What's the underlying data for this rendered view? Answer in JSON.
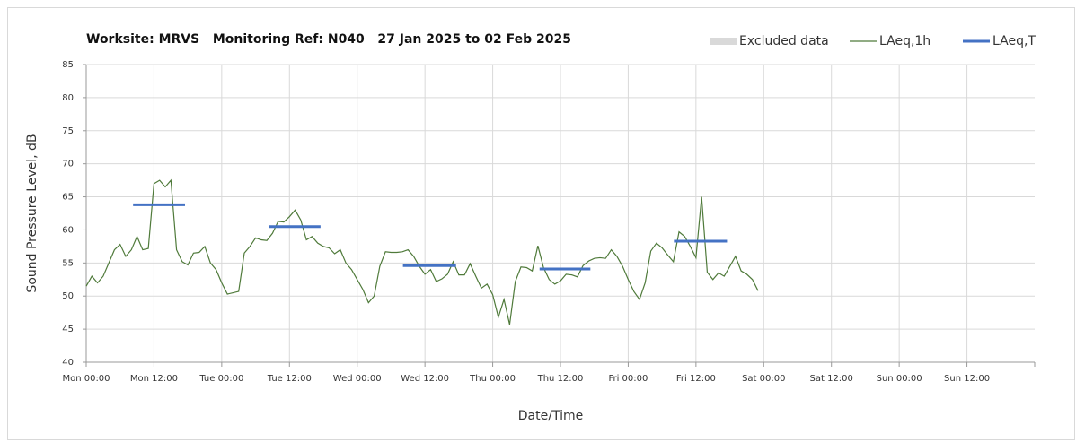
{
  "chart_data": {
    "type": "line",
    "title": "Worksite: MRVS   Monitoring Ref: N040   27 Jan 2025 to 02 Feb 2025",
    "xlabel": "Date/Time",
    "ylabel": "Sound Pressure Level, dB",
    "xlim": [
      0,
      168
    ],
    "ylim": [
      40,
      85
    ],
    "yticks": [
      40,
      45,
      50,
      55,
      60,
      65,
      70,
      75,
      80,
      85
    ],
    "xticks": [
      {
        "value": 0,
        "label": "Mon 00:00"
      },
      {
        "value": 12,
        "label": "Mon 12:00"
      },
      {
        "value": 24,
        "label": "Tue 00:00"
      },
      {
        "value": 36,
        "label": "Tue 12:00"
      },
      {
        "value": 48,
        "label": "Wed 00:00"
      },
      {
        "value": 60,
        "label": "Wed 12:00"
      },
      {
        "value": 72,
        "label": "Thu 00:00"
      },
      {
        "value": 84,
        "label": "Thu 12:00"
      },
      {
        "value": 96,
        "label": "Fri 00:00"
      },
      {
        "value": 108,
        "label": "Fri 12:00"
      },
      {
        "value": 120,
        "label": "Sat 00:00"
      },
      {
        "value": 132,
        "label": "Sat 12:00"
      },
      {
        "value": 144,
        "label": "Sun 00:00"
      },
      {
        "value": 156,
        "label": "Sun 12:00"
      }
    ],
    "grid": true,
    "legend": "top-right",
    "series": [
      {
        "name": "Excluded data",
        "color": "#d9d9d9",
        "kind": "area",
        "values": []
      },
      {
        "name": "LAeq,1h",
        "color": "#4f7a3a",
        "kind": "line",
        "x": [
          0,
          1,
          2,
          3,
          4,
          5,
          6,
          7,
          8,
          9,
          10,
          11,
          12,
          13,
          14,
          15,
          16,
          17,
          18,
          19,
          20,
          21,
          22,
          23,
          24,
          25,
          26,
          27,
          28,
          29,
          30,
          31,
          32,
          33,
          34,
          35,
          36,
          37,
          38,
          39,
          40,
          41,
          42,
          43,
          44,
          45,
          46,
          47,
          48,
          49,
          50,
          51,
          52,
          53,
          54,
          55,
          56,
          57,
          58,
          59,
          60,
          61,
          62,
          63,
          64,
          65,
          66,
          67,
          68,
          69,
          70,
          71,
          72,
          73,
          74,
          75,
          76,
          77,
          78,
          79,
          80,
          81,
          82,
          83,
          84,
          85,
          86,
          87,
          88,
          89,
          90,
          91,
          92,
          93,
          94,
          95,
          96,
          97,
          98,
          99,
          100,
          101,
          102,
          103,
          104,
          105,
          106,
          107,
          108,
          109,
          110,
          111,
          112,
          113,
          114,
          115,
          116,
          117,
          118,
          119
        ],
        "values": [
          51.5,
          53,
          52,
          53,
          55,
          57,
          57.8,
          56,
          57,
          59,
          57,
          57.2,
          67,
          67.5,
          66.5,
          67.5,
          57,
          55.2,
          54.7,
          56.5,
          56.6,
          57.5,
          55,
          54,
          52,
          50.3,
          50.5,
          50.7,
          56.5,
          57.5,
          58.8,
          58.5,
          58.4,
          59.5,
          61.3,
          61.2,
          62,
          63,
          61.5,
          58.5,
          59,
          58,
          57.5,
          57.3,
          56.4,
          57,
          55,
          54,
          52.5,
          51,
          49,
          50,
          54.5,
          56.7,
          56.6,
          56.6,
          56.7,
          57,
          56,
          54.5,
          53.3,
          54,
          52.2,
          52.6,
          53.3,
          55.2,
          53.2,
          53.2,
          54.9,
          53,
          51.2,
          51.8,
          50.2,
          46.8,
          49.5,
          45.7,
          52.2,
          54.4,
          54.3,
          53.8,
          57.6,
          54.3,
          52.5,
          51.8,
          52.3,
          53.3,
          53.2,
          52.9,
          54.6,
          55.3,
          55.7,
          55.8,
          55.7,
          57,
          56,
          54.5,
          52.5,
          50.7,
          49.5,
          52,
          56.8,
          58,
          57.3,
          56.2,
          55.2,
          59.7,
          59,
          57.5,
          55.8,
          65,
          53.6,
          52.5,
          53.5,
          53,
          54.5,
          56,
          53.8,
          53.3,
          52.5,
          50.8
        ]
      },
      {
        "name": "LAeq,T",
        "color": "#4472c4",
        "kind": "segments",
        "x_start": [
          8.3,
          32.3,
          56.1,
          80.3,
          104.1
        ],
        "x_end": [
          17.5,
          41.5,
          65.5,
          89.3,
          113.5
        ],
        "values": [
          63.8,
          60.5,
          54.6,
          54.1,
          58.3
        ]
      }
    ]
  }
}
